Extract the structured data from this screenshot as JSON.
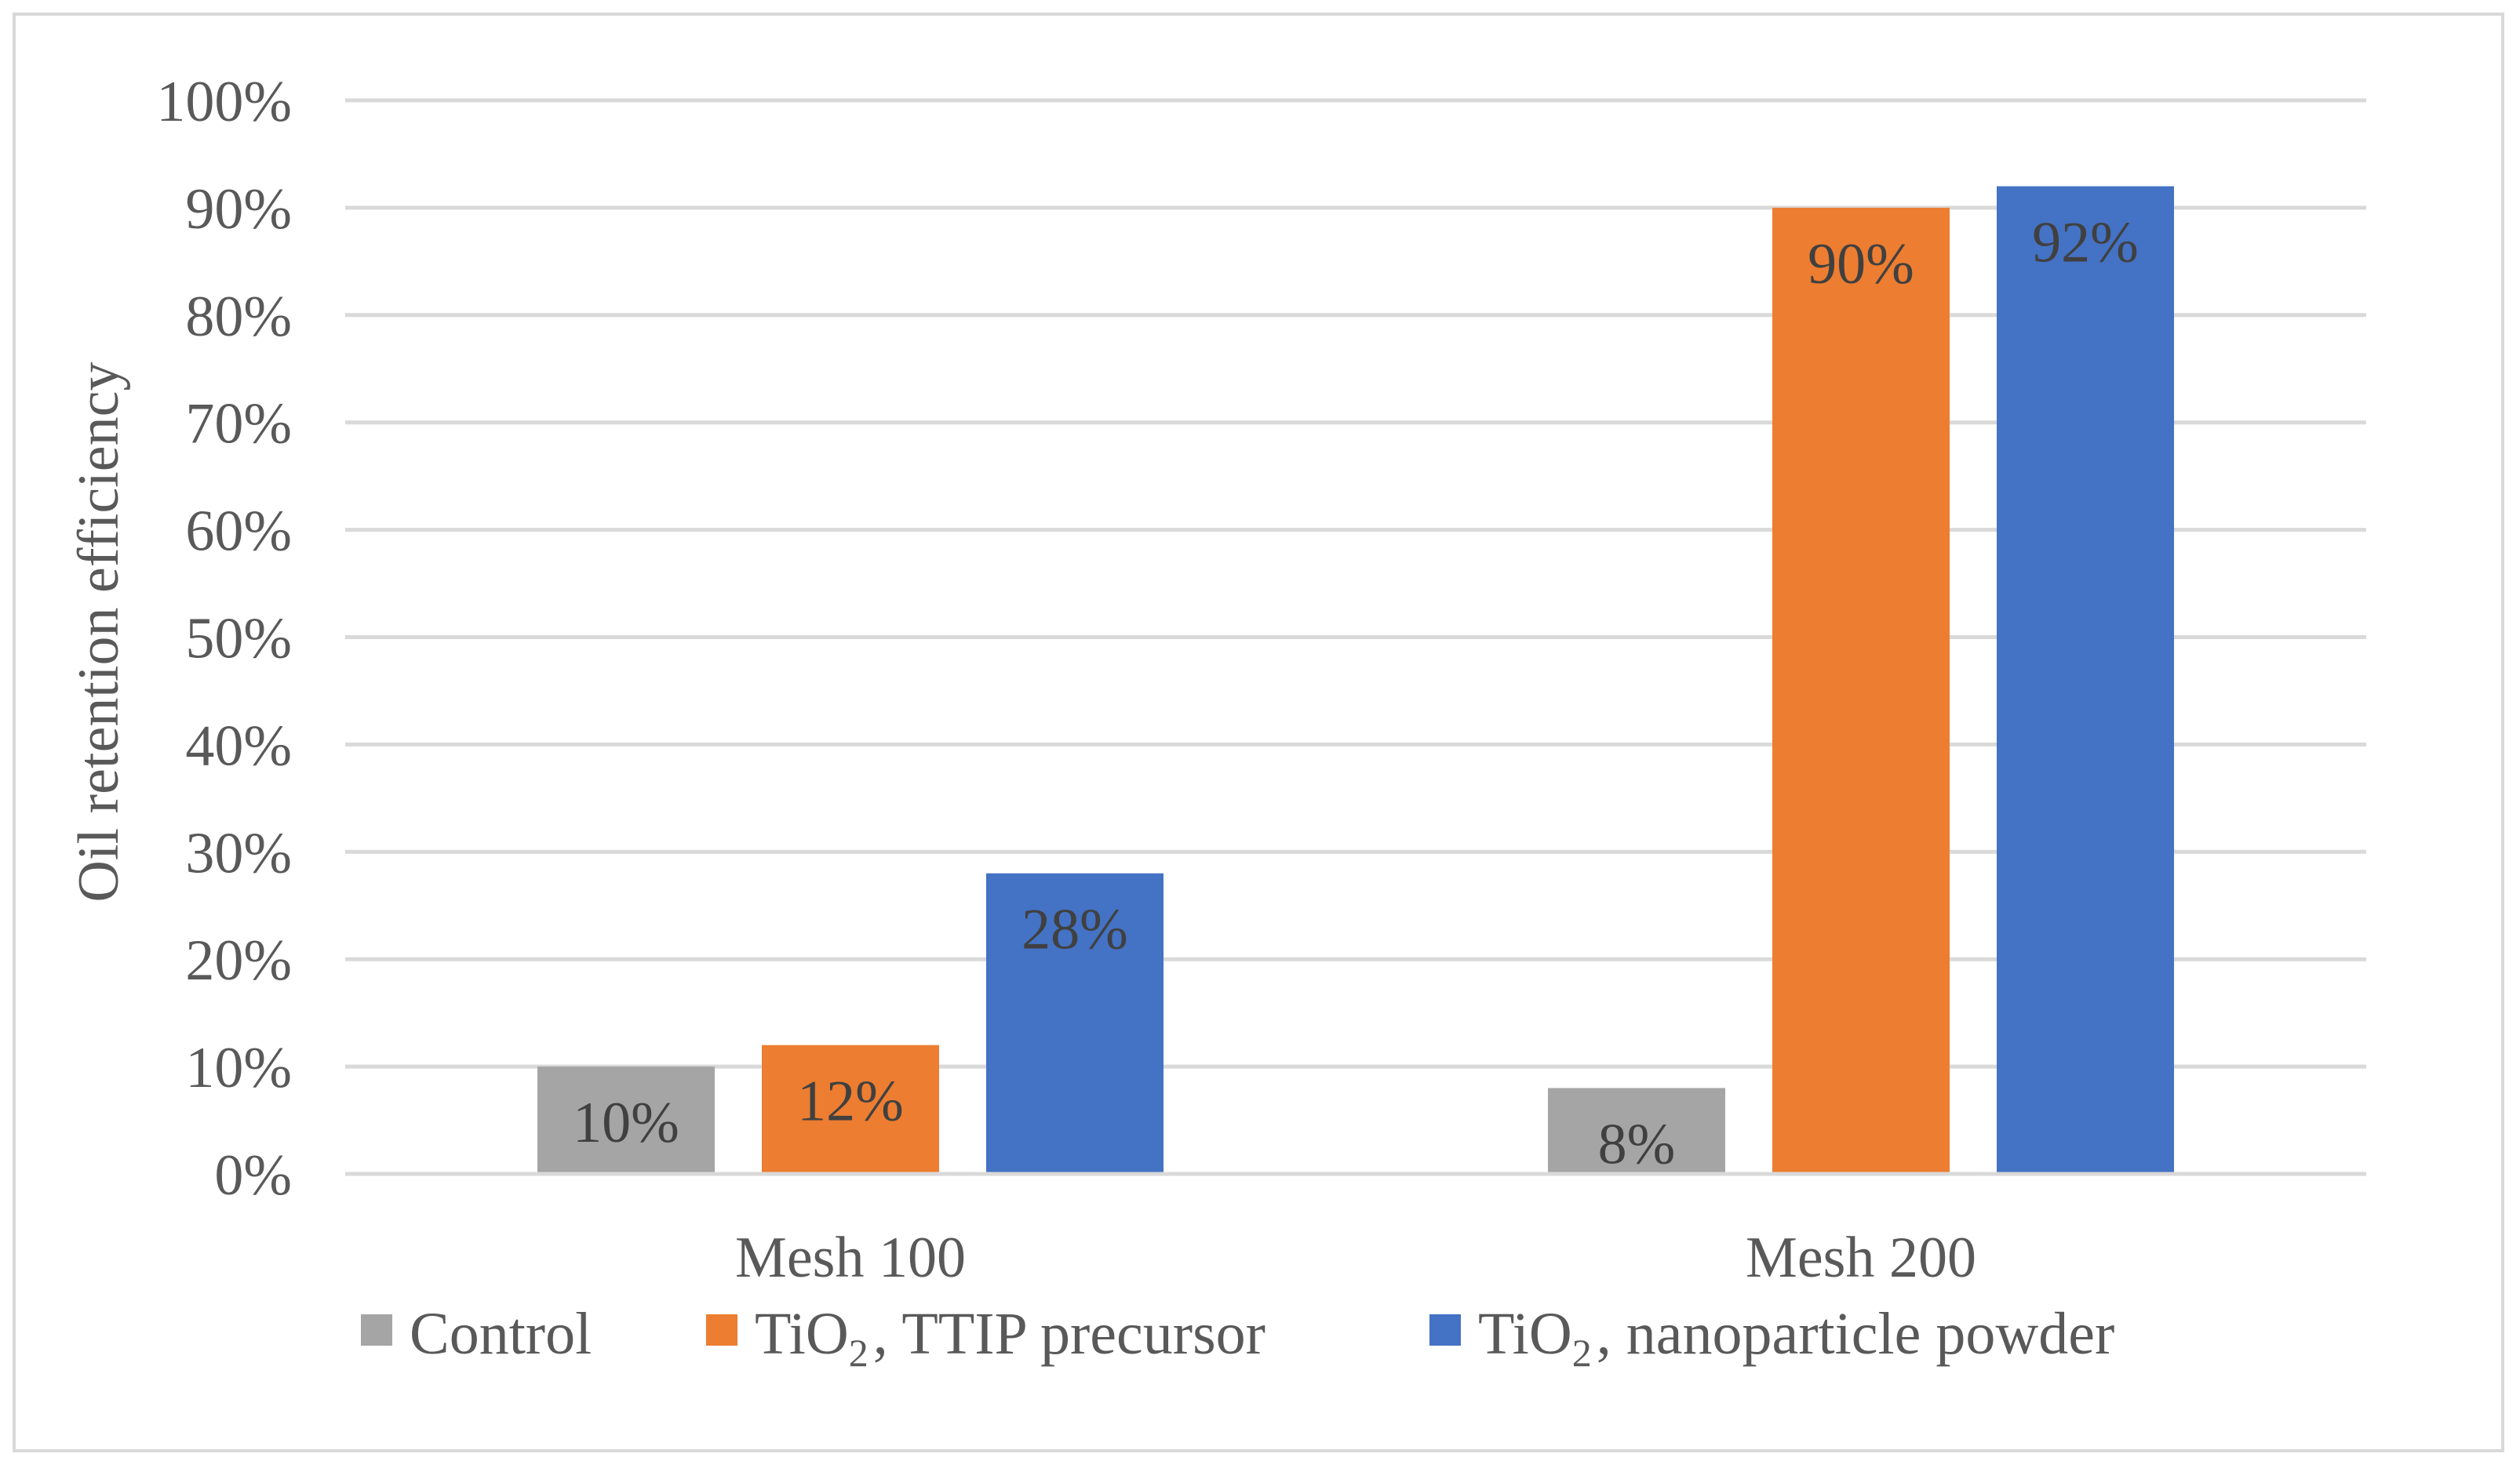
{
  "chart_data": {
    "type": "bar",
    "title": "",
    "xlabel": "",
    "ylabel": "Oil retention efficiency",
    "ylim": [
      0,
      100
    ],
    "yticks": [
      "0%",
      "10%",
      "20%",
      "30%",
      "40%",
      "50%",
      "60%",
      "70%",
      "80%",
      "90%",
      "100%"
    ],
    "categories": [
      "Mesh 100",
      "Mesh 200"
    ],
    "series": [
      {
        "name": "Control",
        "legend_main": "Control",
        "legend_sub": "",
        "legend_rest": "",
        "color": "#a5a5a5",
        "values": [
          10,
          8
        ],
        "labels": [
          "10%",
          "8%"
        ]
      },
      {
        "name": "TiO2, TTIP precursor",
        "legend_main": "TiO",
        "legend_sub": "2",
        "legend_rest": ", TTIP precursor",
        "color": "#ed7d31",
        "values": [
          12,
          90
        ],
        "labels": [
          "12%",
          "90%"
        ]
      },
      {
        "name": "TiO2, nanoparticle powder",
        "legend_main": "TiO",
        "legend_sub": "2",
        "legend_rest": ", nanoparticle powder",
        "color": "#4472c4",
        "values": [
          28,
          92
        ],
        "labels": [
          "28%",
          "92%"
        ]
      }
    ],
    "grid": true,
    "legend_position": "bottom"
  }
}
